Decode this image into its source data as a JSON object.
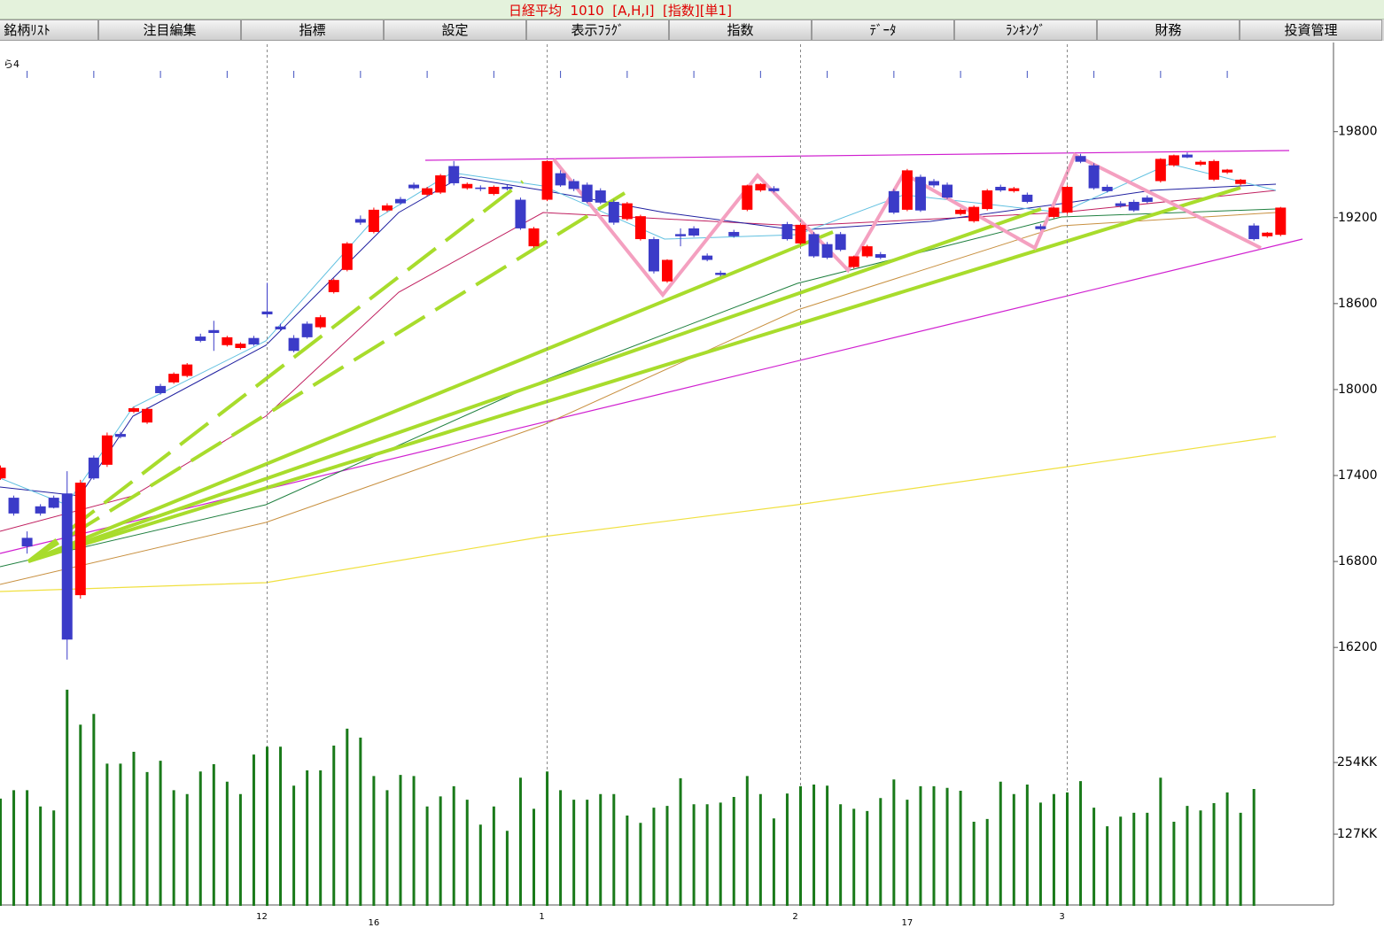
{
  "header": {
    "title": "日経平均  1010  [A,H,I]  [指数][単1]"
  },
  "menu": [
    "銘柄ﾘｽﾄ",
    "注目編集",
    "指標",
    "設定",
    "表示ﾌﾗｸﾞ",
    "指数",
    "ﾃﾞｰﾀ",
    "ﾗﾝｷﾝｸﾞ",
    "財務",
    "投資管理"
  ],
  "chart_data": [
    {
      "type": "candlestick",
      "corner_label": "ら4",
      "up_color": "#ff0000",
      "down_color": "#3b3bc8",
      "categories": [
        null,
        null,
        null,
        null,
        null,
        null,
        null,
        null,
        null,
        null,
        null,
        null,
        null,
        null,
        null,
        null,
        null,
        null,
        null,
        null,
        "12",
        null,
        null,
        null,
        null,
        null,
        null,
        null,
        null,
        null,
        null,
        null,
        null,
        null,
        null,
        null,
        null,
        null,
        null,
        null,
        null,
        "1",
        null,
        null,
        null,
        null,
        null,
        null,
        null,
        null,
        null,
        null,
        null,
        null,
        null,
        null,
        null,
        null,
        null,
        null,
        "2",
        null,
        null,
        null,
        null,
        null,
        null,
        null,
        null,
        null,
        null,
        null,
        null,
        null,
        null,
        null,
        null,
        null,
        null,
        null,
        "3",
        null,
        null,
        null,
        null,
        null,
        null,
        null,
        null,
        null,
        null,
        null,
        null,
        null,
        null,
        null,
        null
      ],
      "year_categories": [
        null,
        null,
        null,
        null,
        null,
        null,
        null,
        null,
        null,
        null,
        null,
        null,
        null,
        null,
        null,
        null,
        null,
        null,
        null,
        null,
        null,
        null,
        null,
        null,
        null,
        null,
        null,
        null,
        "16",
        null,
        null,
        null,
        null,
        null,
        null,
        null,
        null,
        null,
        null,
        null,
        null,
        null,
        null,
        null,
        null,
        null,
        null,
        null,
        null,
        null,
        null,
        null,
        null,
        null,
        null,
        null,
        null,
        null,
        null,
        null,
        null,
        null,
        null,
        null,
        null,
        null,
        null,
        null,
        "17",
        null,
        null,
        null,
        null,
        null,
        null,
        null,
        null,
        null,
        null,
        null,
        null,
        null,
        null,
        null,
        null,
        null,
        null,
        null,
        null,
        null,
        null,
        null,
        null,
        null,
        null,
        null,
        null
      ],
      "open": [
        17380,
        17245,
        16965,
        17185,
        17245,
        17275,
        16565,
        17525,
        17475,
        17690,
        17845,
        17770,
        18025,
        18050,
        18095,
        18370,
        18415,
        18310,
        18290,
        18360,
        18545,
        18440,
        18360,
        18460,
        18435,
        18680,
        18835,
        19190,
        19100,
        19250,
        19330,
        19430,
        19360,
        19375,
        19560,
        19405,
        19410,
        19365,
        19415,
        19325,
        19000,
        19325,
        19510,
        19455,
        19430,
        19390,
        19310,
        19190,
        19050,
        19050,
        18755,
        19085,
        19125,
        18935,
        18815,
        19100,
        19255,
        19390,
        19405,
        19155,
        19020,
        19085,
        19015,
        19085,
        18855,
        18930,
        18945,
        19385,
        19255,
        19485,
        19455,
        19430,
        19225,
        19175,
        19260,
        19415,
        19385,
        19360,
        19140,
        19205,
        19235,
        19630,
        19565,
        19415,
        19300,
        19310,
        19340,
        19455,
        19565,
        19640,
        19570,
        19465,
        19515,
        19435,
        19145,
        19070,
        19080
      ],
      "high": [
        17470,
        17260,
        17010,
        17200,
        17260,
        17430,
        17370,
        17540,
        17700,
        17705,
        17880,
        17875,
        18040,
        18120,
        18185,
        18390,
        18480,
        18375,
        18330,
        18375,
        18745,
        18460,
        18380,
        18475,
        18520,
        18775,
        19030,
        19215,
        19270,
        19300,
        19345,
        19445,
        19415,
        19505,
        19595,
        19445,
        19425,
        19425,
        19430,
        19340,
        19135,
        19600,
        19530,
        19470,
        19445,
        19405,
        19325,
        19310,
        19220,
        19065,
        18910,
        19125,
        19140,
        18950,
        18830,
        19115,
        19430,
        19440,
        19420,
        19170,
        19160,
        19100,
        19030,
        19100,
        18935,
        19010,
        18960,
        19400,
        19540,
        19500,
        19470,
        19445,
        19265,
        19285,
        19400,
        19430,
        19415,
        19375,
        19155,
        19275,
        19425,
        19645,
        19580,
        19430,
        19315,
        19325,
        19355,
        19615,
        19640,
        19655,
        19600,
        19605,
        19540,
        19470,
        19160,
        19100,
        19275
      ],
      "low": [
        17370,
        17120,
        16855,
        17120,
        17170,
        16115,
        16540,
        17370,
        17460,
        17660,
        17835,
        17760,
        17965,
        18040,
        18085,
        18330,
        18270,
        18300,
        18280,
        18305,
        18505,
        18410,
        18260,
        18355,
        18425,
        18670,
        18825,
        19150,
        19090,
        19240,
        19290,
        19395,
        19350,
        19365,
        19425,
        19395,
        19385,
        19355,
        19390,
        19115,
        18990,
        19315,
        19415,
        19385,
        19300,
        19295,
        19150,
        19180,
        19040,
        18810,
        18745,
        19000,
        19065,
        18895,
        18790,
        19060,
        19245,
        19380,
        19375,
        19040,
        19010,
        18920,
        18910,
        18965,
        18845,
        18920,
        18910,
        19225,
        19245,
        19240,
        19410,
        19330,
        19215,
        19165,
        19250,
        19380,
        19375,
        19300,
        19110,
        19195,
        19225,
        19580,
        19395,
        19375,
        19270,
        19240,
        19300,
        19445,
        19555,
        19615,
        19560,
        19455,
        19505,
        19425,
        19040,
        19060,
        19070
      ],
      "close": [
        17455,
        17135,
        16905,
        17135,
        17175,
        16255,
        17350,
        17380,
        17680,
        17670,
        17870,
        17865,
        17975,
        18110,
        18175,
        18340,
        18395,
        18365,
        18320,
        18315,
        18525,
        18420,
        18270,
        18365,
        18505,
        18765,
        19020,
        19165,
        19255,
        19285,
        19300,
        19405,
        19405,
        19495,
        19440,
        19435,
        19400,
        19415,
        19400,
        19125,
        19125,
        19595,
        19425,
        19400,
        19310,
        19305,
        19165,
        19300,
        19210,
        18825,
        18905,
        19070,
        19075,
        18905,
        18800,
        19070,
        19425,
        19435,
        19385,
        19050,
        19150,
        18930,
        18920,
        18975,
        18930,
        19000,
        18920,
        19235,
        19530,
        19250,
        19425,
        19340,
        19255,
        19275,
        19390,
        19390,
        19405,
        19310,
        19120,
        19270,
        19415,
        19590,
        19405,
        19385,
        19280,
        19250,
        19310,
        19610,
        19635,
        19620,
        19590,
        19595,
        19535,
        19465,
        19050,
        19095,
        19270
      ],
      "ylim": [
        15960,
        20410
      ],
      "yticks": [
        19800,
        19200,
        18600,
        18000,
        17400,
        16800,
        16200
      ]
    },
    {
      "type": "bar",
      "color": "#1a7a1a",
      "values": [
        190,
        205,
        205,
        176,
        169,
        383,
        321,
        340,
        252,
        252,
        273,
        237,
        257,
        205,
        198,
        238,
        251,
        220,
        198,
        268,
        282,
        282,
        213,
        240,
        240,
        284,
        314,
        298,
        230,
        205,
        232,
        230,
        176,
        194,
        212,
        188,
        144,
        176,
        133,
        227,
        172,
        238,
        205,
        188,
        188,
        198,
        198,
        160,
        147,
        174,
        177,
        226,
        180,
        180,
        183,
        193,
        230,
        198,
        155,
        199,
        212,
        215,
        213,
        180,
        172,
        168,
        191,
        224,
        188,
        212,
        212,
        209,
        204,
        149,
        154,
        220,
        198,
        215,
        183,
        198,
        201,
        221,
        174,
        141,
        158,
        165,
        165,
        227,
        149,
        177,
        169,
        182,
        201,
        165,
        207,
        null,
        null
      ],
      "ylim": [
        0,
        400
      ],
      "yticks": [
        {
          "value": 254,
          "label": "254KK"
        },
        {
          "value": 127,
          "label": "127KK"
        }
      ]
    }
  ]
}
